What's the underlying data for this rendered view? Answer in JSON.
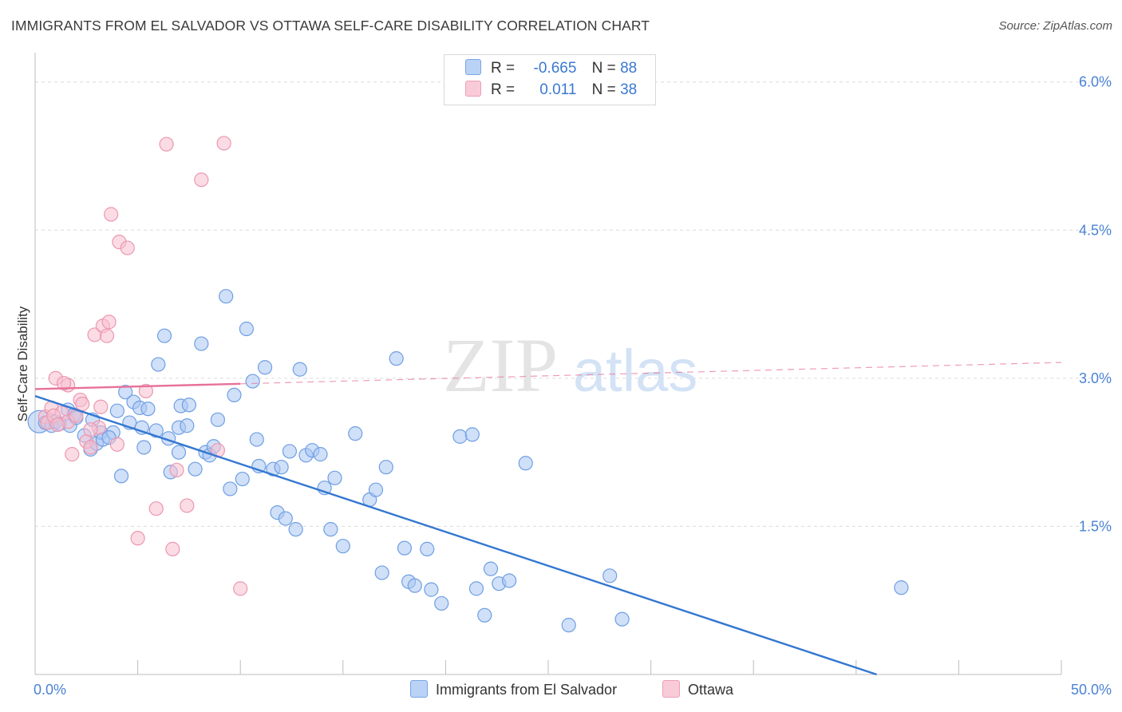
{
  "title": "IMMIGRANTS FROM EL SALVADOR VS OTTAWA SELF-CARE DISABILITY CORRELATION CHART",
  "source": "Source: ZipAtlas.com",
  "watermark": {
    "zip": "ZIP",
    "atlas": "atlas"
  },
  "legend": {
    "rows": [
      {
        "r_label": "R =",
        "r_value": "-0.665",
        "n_label": "N =",
        "n_value": "88"
      },
      {
        "r_label": "R =",
        "r_value": "0.011",
        "n_label": "N =",
        "n_value": "38"
      }
    ]
  },
  "bottom_legend": {
    "series_a": "Immigrants from El Salvador",
    "series_b": "Ottawa"
  },
  "colors": {
    "blue_fill": "#a9c7f2",
    "blue_stroke": "#6f9fe3",
    "blue_line": "#3377d1",
    "pink_fill": "#f7bfd0",
    "pink_stroke": "#ec97b0",
    "pink_line": "#e7719a",
    "grid": "#dcdcdc",
    "tick_text": "#4a82d4"
  },
  "chart_data": {
    "type": "scatter",
    "title": "IMMIGRANTS FROM EL SALVADOR VS OTTAWA SELF-CARE DISABILITY CORRELATION CHART",
    "xlabel": "",
    "ylabel": "Self-Care Disability",
    "xlim": [
      0,
      50
    ],
    "ylim": [
      0,
      6.2
    ],
    "x_tick_labels": [
      "0.0%",
      "50.0%"
    ],
    "y_ticks": [
      1.5,
      3.0,
      4.5,
      6.0
    ],
    "y_tick_labels": [
      "1.5%",
      "3.0%",
      "4.5%",
      "6.0%"
    ],
    "grid": true,
    "legend_position": "top-center",
    "series": [
      {
        "name": "Immigrants from El Salvador",
        "color": "#a9c7f2",
        "trend": {
          "x": [
            0,
            41
          ],
          "y": [
            2.82,
            0.0
          ],
          "solid_to": 41
        },
        "points": [
          [
            0.5,
            2.55
          ],
          [
            0.8,
            2.52
          ],
          [
            1.0,
            2.56
          ],
          [
            1.2,
            2.54
          ],
          [
            1.6,
            2.68
          ],
          [
            1.7,
            2.52
          ],
          [
            1.9,
            2.63
          ],
          [
            2.0,
            2.6
          ],
          [
            2.4,
            2.42
          ],
          [
            2.7,
            2.28
          ],
          [
            2.8,
            2.58
          ],
          [
            3.0,
            2.34
          ],
          [
            3.2,
            2.45
          ],
          [
            3.3,
            2.38
          ],
          [
            3.8,
            2.45
          ],
          [
            4.0,
            2.67
          ],
          [
            4.2,
            2.01
          ],
          [
            4.4,
            2.86
          ],
          [
            4.6,
            2.55
          ],
          [
            4.8,
            2.76
          ],
          [
            5.1,
            2.7
          ],
          [
            5.2,
            2.5
          ],
          [
            5.3,
            2.3
          ],
          [
            5.5,
            2.69
          ],
          [
            5.9,
            2.47
          ],
          [
            6.0,
            3.14
          ],
          [
            6.3,
            3.43
          ],
          [
            6.5,
            2.39
          ],
          [
            6.6,
            2.05
          ],
          [
            7.0,
            2.5
          ],
          [
            7.1,
            2.72
          ],
          [
            7.4,
            2.52
          ],
          [
            7.5,
            2.73
          ],
          [
            7.8,
            2.08
          ],
          [
            8.1,
            3.35
          ],
          [
            8.3,
            2.25
          ],
          [
            8.5,
            2.22
          ],
          [
            8.7,
            2.31
          ],
          [
            8.9,
            2.58
          ],
          [
            9.3,
            3.83
          ],
          [
            9.5,
            1.88
          ],
          [
            9.7,
            2.83
          ],
          [
            10.1,
            1.98
          ],
          [
            10.3,
            3.5
          ],
          [
            10.6,
            2.97
          ],
          [
            10.8,
            2.38
          ],
          [
            10.9,
            2.11
          ],
          [
            11.2,
            3.11
          ],
          [
            11.6,
            2.08
          ],
          [
            11.8,
            1.64
          ],
          [
            12.2,
            1.58
          ],
          [
            12.4,
            2.26
          ],
          [
            12.7,
            1.47
          ],
          [
            12.9,
            3.09
          ],
          [
            13.2,
            2.22
          ],
          [
            13.5,
            2.27
          ],
          [
            13.9,
            2.23
          ],
          [
            14.1,
            1.89
          ],
          [
            14.4,
            1.47
          ],
          [
            14.6,
            1.99
          ],
          [
            15.0,
            1.3
          ],
          [
            15.6,
            2.44
          ],
          [
            16.3,
            1.77
          ],
          [
            16.6,
            1.87
          ],
          [
            16.9,
            1.03
          ],
          [
            17.1,
            2.1
          ],
          [
            17.6,
            3.2
          ],
          [
            18.0,
            1.28
          ],
          [
            18.2,
            0.94
          ],
          [
            18.5,
            0.9
          ],
          [
            19.1,
            1.27
          ],
          [
            19.3,
            0.86
          ],
          [
            19.8,
            0.72
          ],
          [
            20.7,
            2.41
          ],
          [
            21.3,
            2.43
          ],
          [
            21.5,
            0.87
          ],
          [
            21.9,
            0.6
          ],
          [
            22.2,
            1.07
          ],
          [
            22.6,
            0.92
          ],
          [
            23.1,
            0.95
          ],
          [
            23.9,
            2.14
          ],
          [
            26.0,
            0.5
          ],
          [
            28.0,
            1.0
          ],
          [
            28.6,
            0.56
          ],
          [
            42.2,
            0.88
          ],
          [
            12.0,
            2.1
          ],
          [
            7.0,
            2.25
          ],
          [
            3.6,
            2.4
          ]
        ]
      },
      {
        "name": "Ottawa",
        "color": "#f7bfd0",
        "trend": {
          "x": [
            0,
            50
          ],
          "y": [
            2.89,
            3.16
          ],
          "solid_to": 10
        },
        "points": [
          [
            0.5,
            2.61
          ],
          [
            0.6,
            2.55
          ],
          [
            0.8,
            2.7
          ],
          [
            1.0,
            3.0
          ],
          [
            1.3,
            2.65
          ],
          [
            1.6,
            2.56
          ],
          [
            1.6,
            2.93
          ],
          [
            1.8,
            2.23
          ],
          [
            2.0,
            2.62
          ],
          [
            2.2,
            2.78
          ],
          [
            2.3,
            2.74
          ],
          [
            2.5,
            2.36
          ],
          [
            2.7,
            2.3
          ],
          [
            2.9,
            3.44
          ],
          [
            3.1,
            2.5
          ],
          [
            3.2,
            2.71
          ],
          [
            3.3,
            3.53
          ],
          [
            3.5,
            3.43
          ],
          [
            3.6,
            3.57
          ],
          [
            3.7,
            4.66
          ],
          [
            4.0,
            2.33
          ],
          [
            4.1,
            4.38
          ],
          [
            4.5,
            4.32
          ],
          [
            5.0,
            1.38
          ],
          [
            5.4,
            2.87
          ],
          [
            5.9,
            1.68
          ],
          [
            6.4,
            5.37
          ],
          [
            6.7,
            1.27
          ],
          [
            6.9,
            2.07
          ],
          [
            7.4,
            1.71
          ],
          [
            8.1,
            5.01
          ],
          [
            8.9,
            2.27
          ],
          [
            9.2,
            5.38
          ],
          [
            10.0,
            0.87
          ],
          [
            1.4,
            2.95
          ],
          [
            2.7,
            2.48
          ],
          [
            0.9,
            2.62
          ],
          [
            1.1,
            2.53
          ]
        ]
      }
    ]
  }
}
